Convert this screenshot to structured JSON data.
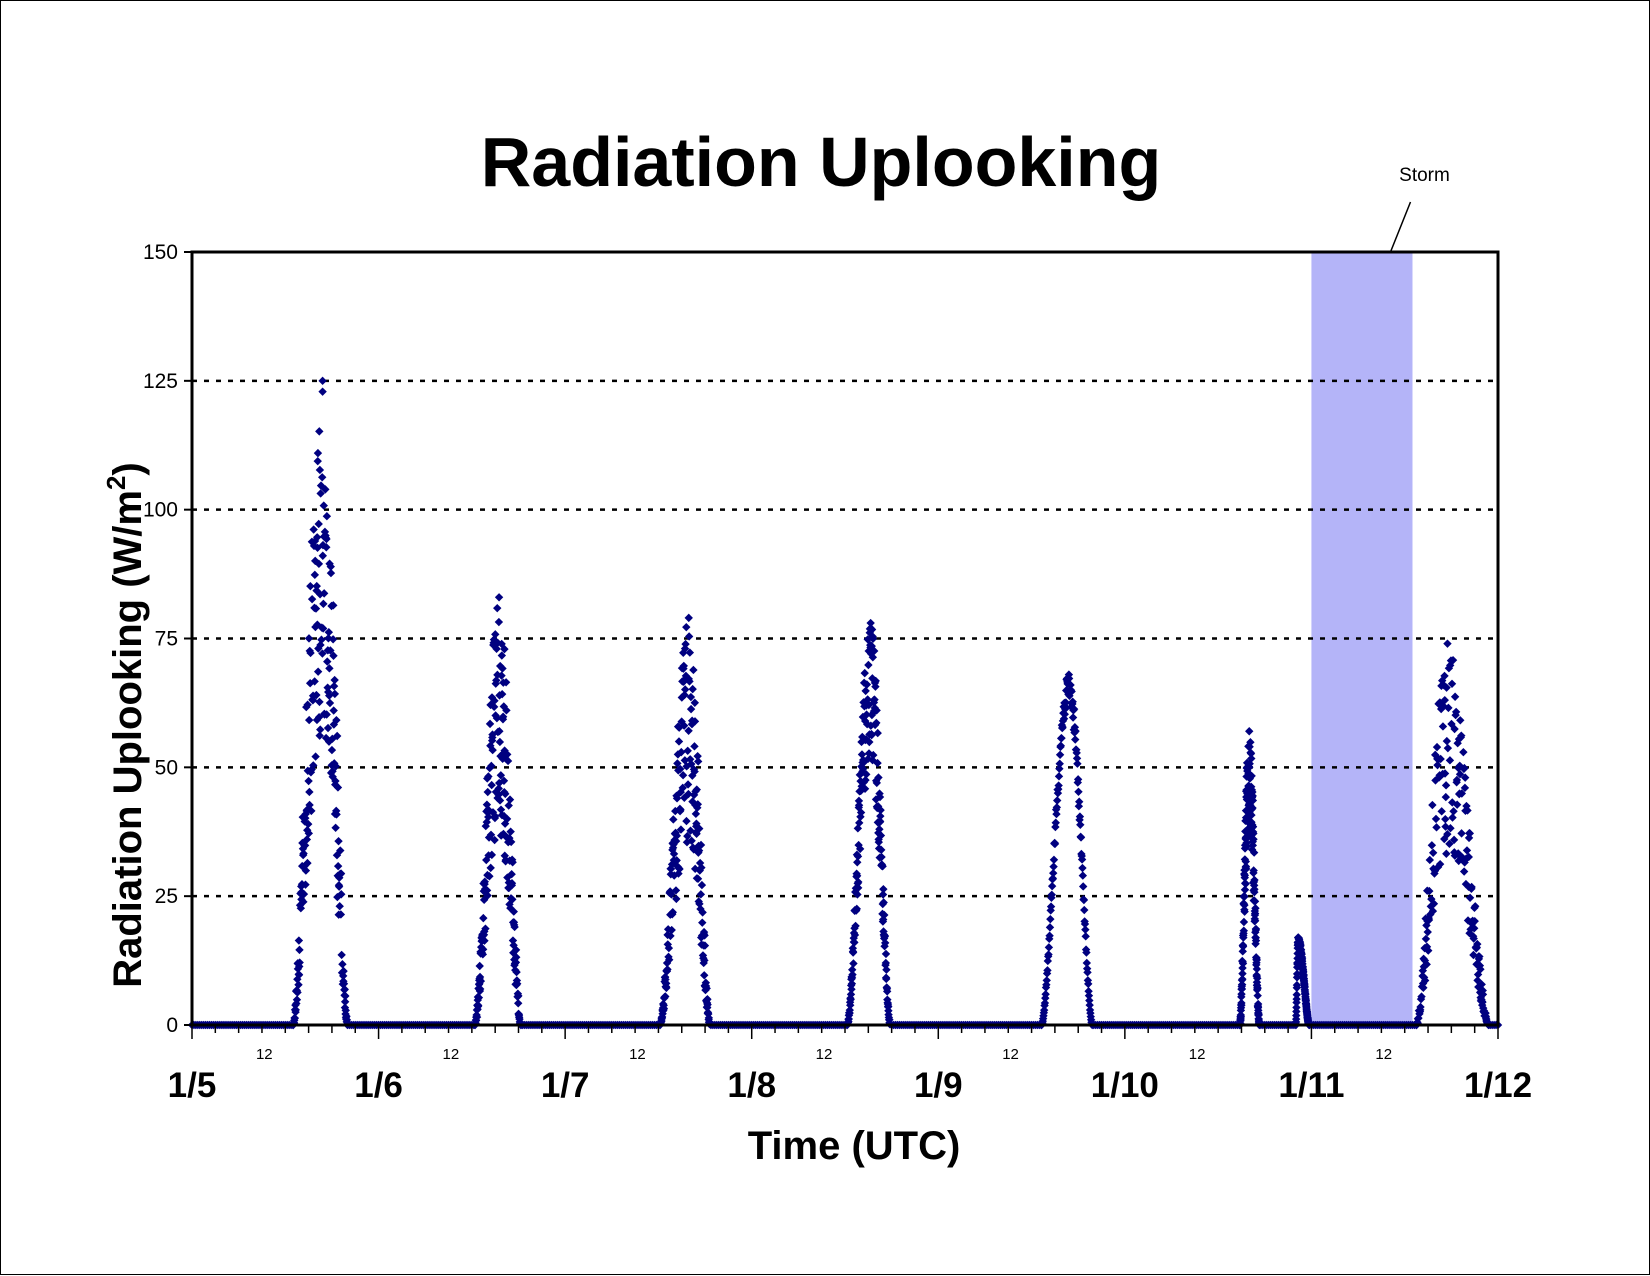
{
  "chart_data": {
    "type": "scatter",
    "title": "Radiation Uplooking",
    "xlabel": "Time (UTC)",
    "ylabel": "Radiation Uplooking (W/m",
    "ylabel_superscript": "2",
    "ylabel_suffix": ")",
    "x_ticks": [
      "1/5",
      "1/6",
      "1/7",
      "1/8",
      "1/9",
      "1/10",
      "1/11",
      "1/12"
    ],
    "noon_label": "12",
    "x_range_days": [
      "1/5 00:00",
      "1/12 00:00"
    ],
    "ylim": [
      0,
      150
    ],
    "y_ticks": [
      "0",
      "25",
      "50",
      "75",
      "100",
      "125",
      "150"
    ],
    "grid": "horizontal dotted lines at 25, 50, 75, 100, 125",
    "marker": "diamond",
    "series_color": "#000080",
    "shaded_region": {
      "label": "Storm",
      "x_start": "1/11 00:00",
      "x_end": "1/11 13:00",
      "color": "#b4b4f8"
    },
    "series": [
      {
        "day_peaks": [
          {
            "day": "1/5",
            "rise_hour": 13.0,
            "set_hour": 20.0,
            "peak": 125,
            "peak_hour": 16.8,
            "scatter": "high"
          },
          {
            "day": "1/6",
            "rise_hour": 12.4,
            "set_hour": 18.3,
            "peak": 83,
            "peak_hour": 15.5,
            "scatter": "high"
          },
          {
            "day": "1/7",
            "rise_hour": 12.2,
            "set_hour": 18.6,
            "peak": 79,
            "peak_hour": 15.9,
            "scatter": "high"
          },
          {
            "day": "1/8",
            "rise_hour": 12.3,
            "set_hour": 17.8,
            "peak": 78,
            "peak_hour": 15.3,
            "scatter": "medium"
          },
          {
            "day": "1/9",
            "rise_hour": 13.3,
            "set_hour": 19.8,
            "peak": 68,
            "peak_hour": 16.8,
            "scatter": "low"
          },
          {
            "day": "1/10",
            "rise_hour": 14.8,
            "set_hour": 17.3,
            "peak": 57,
            "peak_hour": 16.0,
            "scatter": "medium"
          },
          {
            "day": "1/10 late",
            "rise_hour": 22.0,
            "set_hour": 23.7,
            "peak": 17,
            "peak_hour": 22.3,
            "scatter": "low"
          },
          {
            "day": "1/11",
            "rise_hour": 13.5,
            "set_hour": 22.8,
            "peak": 74,
            "peak_hour": 17.5,
            "scatter": "high"
          }
        ]
      }
    ]
  }
}
